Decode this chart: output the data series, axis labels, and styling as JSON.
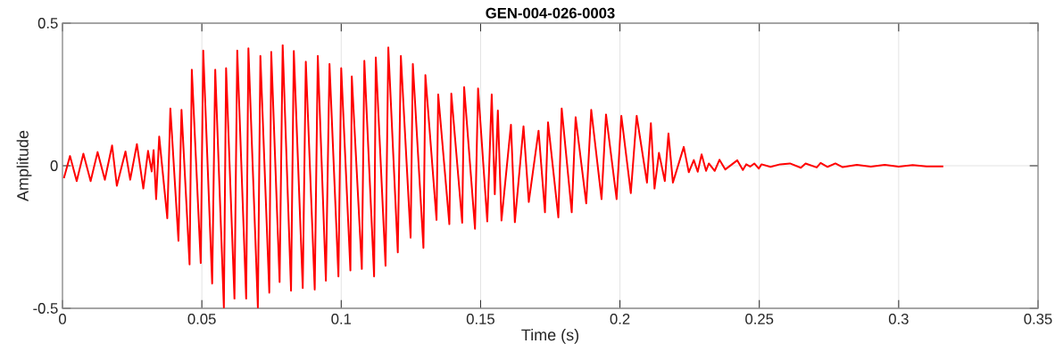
{
  "chart_data": {
    "type": "line",
    "title": "GEN-004-026-0003",
    "xlabel": "Time (s)",
    "ylabel": "Amplitude",
    "x": [
      0.0005,
      0.0027,
      0.0051,
      0.0075,
      0.0101,
      0.0126,
      0.0152,
      0.0178,
      0.0195,
      0.0226,
      0.0243,
      0.0267,
      0.029,
      0.0307,
      0.032,
      0.0327,
      0.0336,
      0.0347,
      0.0376,
      0.0387,
      0.0416,
      0.0427,
      0.0456,
      0.0464,
      0.0496,
      0.0505,
      0.0537,
      0.0548,
      0.0579,
      0.0587,
      0.0617,
      0.0627,
      0.0659,
      0.0667,
      0.0701,
      0.071,
      0.0742,
      0.0749,
      0.0779,
      0.079,
      0.082,
      0.083,
      0.0862,
      0.0873,
      0.0905,
      0.0916,
      0.0945,
      0.0958,
      0.099,
      0.1,
      0.1033,
      0.1038,
      0.1074,
      0.1083,
      0.1118,
      0.1124,
      0.1159,
      0.1169,
      0.1203,
      0.1214,
      0.1249,
      0.1257,
      0.1295,
      0.1302,
      0.1342,
      0.1348,
      0.1388,
      0.1395,
      0.1434,
      0.1441,
      0.148,
      0.1491,
      0.1524,
      0.154,
      0.1551,
      0.1562,
      0.1575,
      0.1609,
      0.1623,
      0.1654,
      0.1673,
      0.1708,
      0.1731,
      0.1742,
      0.1779,
      0.1791,
      0.1827,
      0.1841,
      0.1879,
      0.1897,
      0.1934,
      0.195,
      0.1988,
      0.2005,
      0.2039,
      0.206,
      0.2097,
      0.2111,
      0.2124,
      0.214,
      0.2161,
      0.2174,
      0.219,
      0.2229,
      0.2247,
      0.2265,
      0.2279,
      0.2293,
      0.2309,
      0.2319,
      0.234,
      0.2357,
      0.2378,
      0.2421,
      0.2441,
      0.2453,
      0.2467,
      0.2482,
      0.2498,
      0.2508,
      0.254,
      0.2575,
      0.261,
      0.2649,
      0.2666,
      0.2706,
      0.272,
      0.2745,
      0.2773,
      0.2799,
      0.285,
      0.29,
      0.295,
      0.3,
      0.305,
      0.31,
      0.316
    ],
    "series": [
      {
        "color": "#ff0000",
        "values": [
          -0.044,
          0.034,
          -0.054,
          0.042,
          -0.054,
          0.048,
          -0.049,
          0.071,
          -0.07,
          0.05,
          -0.049,
          0.076,
          -0.08,
          0.052,
          -0.02,
          0.055,
          -0.117,
          0.102,
          -0.184,
          0.201,
          -0.263,
          0.196,
          -0.346,
          0.337,
          -0.341,
          0.404,
          -0.413,
          0.337,
          -0.497,
          0.342,
          -0.466,
          0.404,
          -0.466,
          0.412,
          -0.497,
          0.385,
          -0.445,
          0.399,
          -0.408,
          0.423,
          -0.438,
          0.402,
          -0.429,
          0.365,
          -0.434,
          0.385,
          -0.403,
          0.357,
          -0.388,
          0.342,
          -0.367,
          0.313,
          -0.362,
          0.368,
          -0.388,
          0.38,
          -0.351,
          0.415,
          -0.304,
          0.385,
          -0.252,
          0.357,
          -0.288,
          0.318,
          -0.19,
          0.25,
          -0.205,
          0.253,
          -0.2,
          0.276,
          -0.221,
          0.271,
          -0.195,
          0.25,
          -0.1,
          0.194,
          -0.192,
          0.144,
          -0.198,
          0.138,
          -0.127,
          0.123,
          -0.163,
          0.152,
          -0.181,
          0.201,
          -0.163,
          0.17,
          -0.132,
          0.196,
          -0.117,
          0.18,
          -0.117,
          0.175,
          -0.096,
          0.175,
          -0.059,
          0.149,
          -0.08,
          0.045,
          -0.054,
          0.113,
          -0.059,
          0.066,
          -0.023,
          0.02,
          -0.021,
          0.04,
          -0.018,
          0.008,
          -0.018,
          0.021,
          -0.013,
          0.019,
          -0.015,
          0.005,
          -0.003,
          0.008,
          -0.01,
          0.005,
          -0.004,
          0.005,
          0.008,
          -0.007,
          0.008,
          -0.006,
          0.01,
          -0.004,
          0.008,
          -0.005,
          0.003,
          -0.003,
          0.003,
          -0.003,
          0.002,
          -0.002,
          -0.002
        ]
      }
    ],
    "xlim": [
      0,
      0.35
    ],
    "ylim": [
      -0.5,
      0.5
    ],
    "xticks": [
      0,
      0.05,
      0.1,
      0.15,
      0.2,
      0.25,
      0.3,
      0.35
    ],
    "yticks": [
      -0.5,
      0,
      0.5
    ],
    "grid": true,
    "line_style": "solid"
  }
}
